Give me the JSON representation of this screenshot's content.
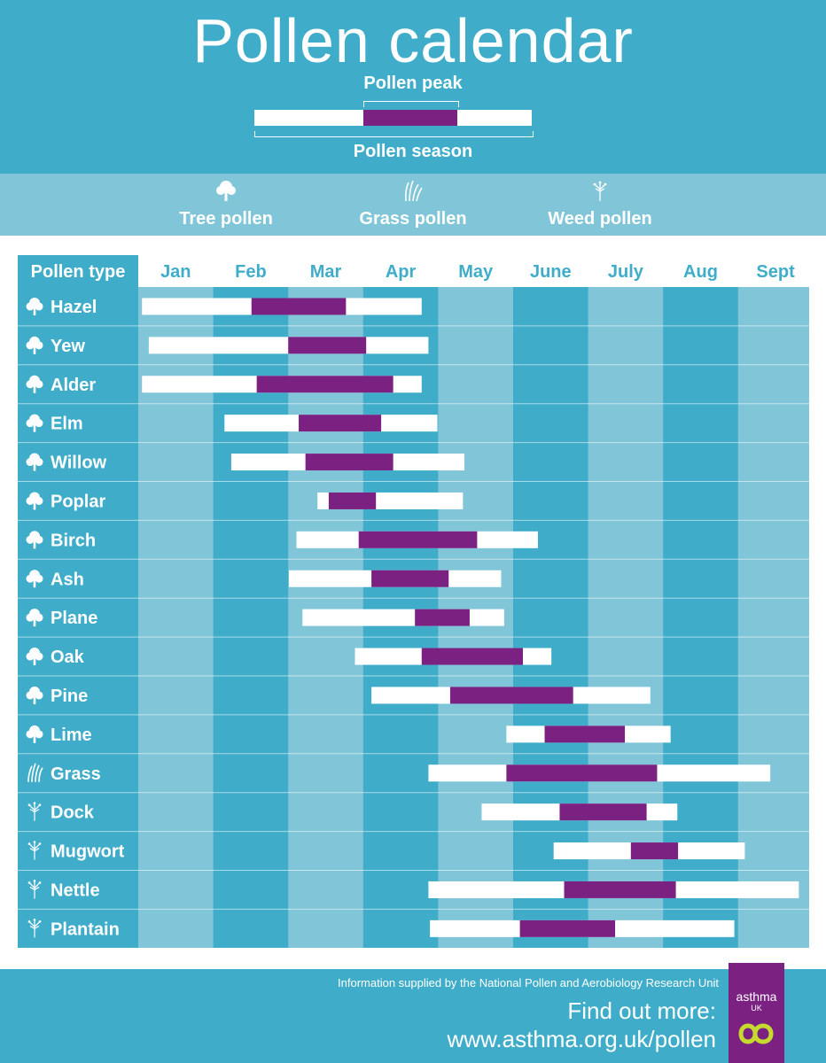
{
  "header": {
    "title": "Pollen calendar",
    "peak_label": "Pollen peak",
    "season_label": "Pollen season"
  },
  "pollen_types": [
    {
      "label": "Tree pollen",
      "icon": "tree-icon"
    },
    {
      "label": "Grass pollen",
      "icon": "grass-icon"
    },
    {
      "label": "Weed pollen",
      "icon": "weed-icon"
    }
  ],
  "colors": {
    "header_bg": "#3fadc9",
    "band_light": "#80c5d8",
    "band_dark": "#3fadc9",
    "season": "#ffffff",
    "peak": "#7a2182"
  },
  "chart_data": {
    "type": "gantt",
    "row_header": "Pollen type",
    "months": [
      "Jan",
      "Feb",
      "Mar",
      "Apr",
      "May",
      "June",
      "July",
      "Aug",
      "Sept"
    ],
    "x_unit": "month (Jan = 0, end of Sept = 9)",
    "series": [
      {
        "name": "Season",
        "color": "#ffffff"
      },
      {
        "name": "Peak",
        "color": "#7a2182"
      }
    ],
    "rows": [
      {
        "name": "Hazel",
        "type": "tree",
        "season": [
          0.05,
          3.78
        ],
        "peak": [
          1.51,
          2.77
        ]
      },
      {
        "name": "Yew",
        "type": "tree",
        "season": [
          0.14,
          3.87
        ],
        "peak": [
          2.0,
          3.04
        ]
      },
      {
        "name": "Alder",
        "type": "tree",
        "season": [
          0.05,
          3.78
        ],
        "peak": [
          1.58,
          3.4
        ]
      },
      {
        "name": "Elm",
        "type": "tree",
        "season": [
          1.15,
          3.99
        ],
        "peak": [
          2.14,
          3.24
        ]
      },
      {
        "name": "Willow",
        "type": "tree",
        "season": [
          1.24,
          4.35
        ],
        "peak": [
          2.23,
          3.4
        ]
      },
      {
        "name": "Poplar",
        "type": "tree",
        "season": [
          2.39,
          4.33
        ],
        "peak": [
          2.54,
          3.17
        ]
      },
      {
        "name": "Birch",
        "type": "tree",
        "season": [
          2.11,
          5.33
        ],
        "peak": [
          2.94,
          4.52
        ]
      },
      {
        "name": "Ash",
        "type": "tree",
        "season": [
          2.01,
          4.84
        ],
        "peak": [
          3.11,
          4.14
        ]
      },
      {
        "name": "Plane",
        "type": "tree",
        "season": [
          2.19,
          4.88
        ],
        "peak": [
          3.69,
          4.42
        ]
      },
      {
        "name": "Oak",
        "type": "tree",
        "season": [
          2.89,
          5.51
        ],
        "peak": [
          3.78,
          5.13
        ]
      },
      {
        "name": "Pine",
        "type": "tree",
        "season": [
          3.11,
          6.83
        ],
        "peak": [
          4.16,
          5.8
        ]
      },
      {
        "name": "Lime",
        "type": "tree",
        "season": [
          4.91,
          7.1
        ],
        "peak": [
          5.42,
          6.49
        ]
      },
      {
        "name": "Grass",
        "type": "grass",
        "season": [
          3.87,
          8.43
        ],
        "peak": [
          4.91,
          6.92
        ]
      },
      {
        "name": "Dock",
        "type": "weed",
        "season": [
          4.58,
          7.19
        ],
        "peak": [
          5.62,
          6.78
        ]
      },
      {
        "name": "Mugwort",
        "type": "weed",
        "season": [
          5.54,
          8.09
        ],
        "peak": [
          6.57,
          7.2
        ]
      },
      {
        "name": "Nettle",
        "type": "weed",
        "season": [
          3.87,
          8.81
        ],
        "peak": [
          5.68,
          7.17
        ]
      },
      {
        "name": "Plantain",
        "type": "weed",
        "season": [
          3.89,
          7.95
        ],
        "peak": [
          5.09,
          6.36
        ]
      }
    ]
  },
  "footer": {
    "info": "Information supplied by the National Pollen and Aerobiology Research Unit",
    "find_out": "Find out more:",
    "url": "www.asthma.org.uk/pollen",
    "logo_text": "asthma",
    "logo_sub": "UK"
  }
}
